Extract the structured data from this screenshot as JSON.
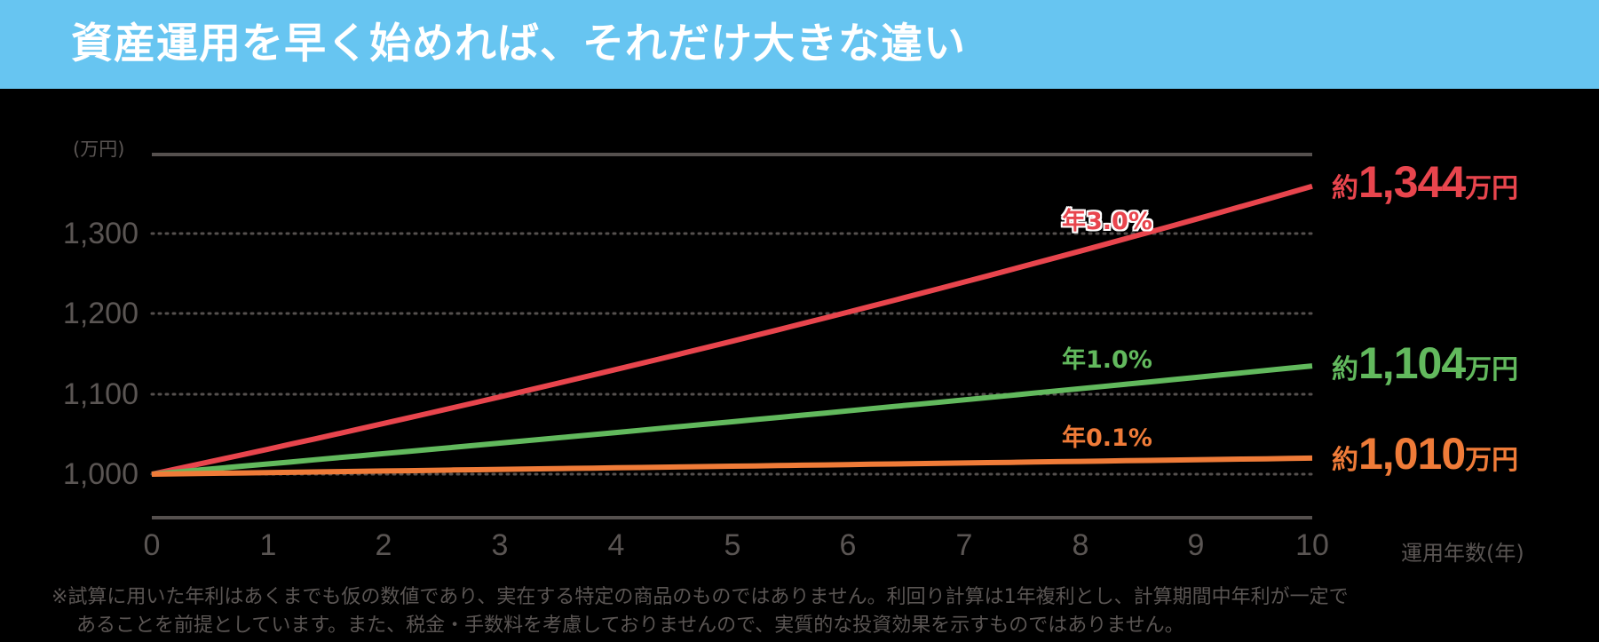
{
  "header": {
    "title": "資産運用を早く始めれば、それだけ大きな違い",
    "background": "#67c5f1"
  },
  "chart_data": {
    "type": "line",
    "title": "資産運用を早く始めれば、それだけ大きな違い",
    "xlabel": "運用年数(年)",
    "ylabel": "(万円)",
    "x": [
      0,
      1,
      2,
      3,
      4,
      5,
      6,
      7,
      8,
      9,
      10
    ],
    "x_ticks": [
      "0",
      "1",
      "2",
      "3",
      "4",
      "5",
      "6",
      "7",
      "8",
      "9",
      "10"
    ],
    "y_ticks": [
      "1,000",
      "1,100",
      "1,200",
      "1,300"
    ],
    "y_tick_values": [
      1000,
      1100,
      1200,
      1300
    ],
    "ylim": [
      950,
      1400
    ],
    "grid": "dotted horizontal",
    "series": [
      {
        "name": "年3.0%",
        "rate": 3.0,
        "color": "#e8454d",
        "start": 1000,
        "end_label_value": 1344,
        "drawn_end": 1359,
        "end_label": "1,344",
        "values": [
          1000,
          1030,
          1061,
          1093,
          1126,
          1159,
          1194,
          1230,
          1267,
          1305,
          1344
        ]
      },
      {
        "name": "年1.0%",
        "rate": 1.0,
        "color": "#62b95d",
        "start": 1000,
        "end_label_value": 1104,
        "drawn_end": 1135,
        "end_label": "1,104",
        "values": [
          1000,
          1010,
          1020,
          1030,
          1041,
          1051,
          1062,
          1072,
          1083,
          1094,
          1104
        ]
      },
      {
        "name": "年0.1%",
        "rate": 0.1,
        "color": "#ef7b38",
        "start": 1000,
        "end_label_value": 1010,
        "drawn_end": 1020,
        "end_label": "1,010",
        "values": [
          1000,
          1001,
          1002,
          1003,
          1004,
          1005,
          1006,
          1007,
          1008,
          1009,
          1010
        ]
      }
    ]
  },
  "labels": {
    "y_unit": "(万円)",
    "x_axis": "運用年数(年)",
    "approx_prefix": "約",
    "unit_suffix": "万円"
  },
  "footnote": {
    "line1": "※試算に用いた年利はあくまでも仮の数値であり、実在する特定の商品のものではありません。利回り計算は1年複利とし、計算期間中年利が一定で",
    "line2": "あることを前提としています。また、税金・手数料を考慮しておりませんので、実質的な投資効果を示すものではありません。"
  }
}
